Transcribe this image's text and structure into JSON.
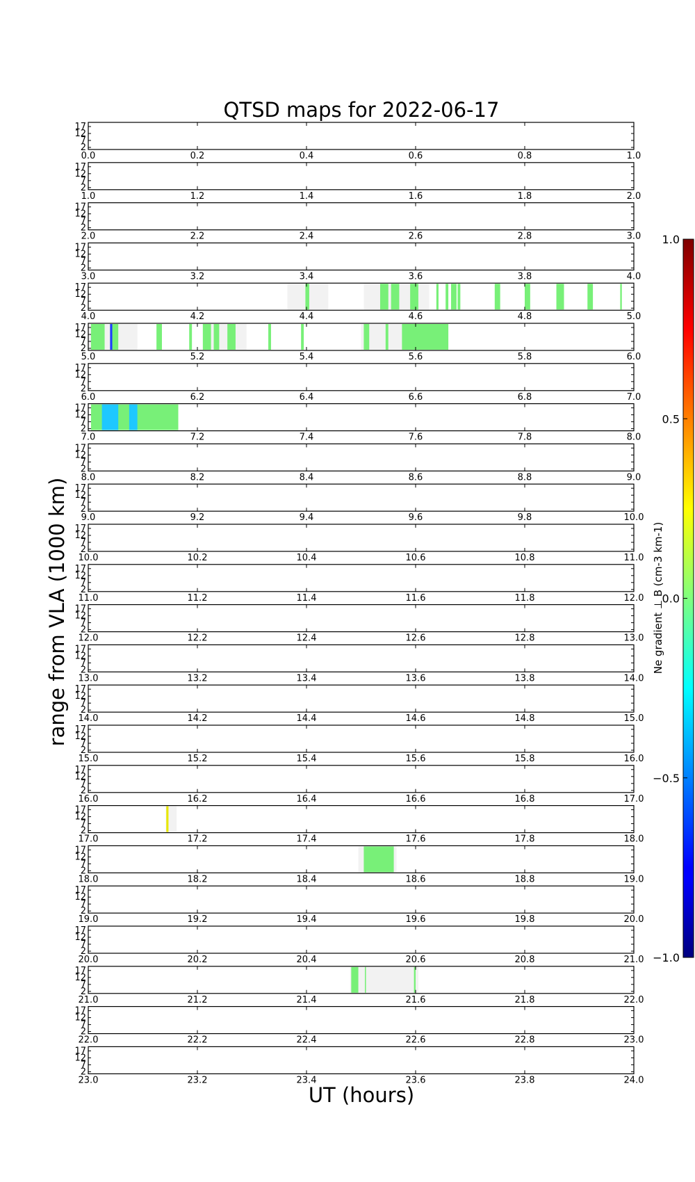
{
  "chart_data": {
    "type": "heatmap",
    "title": "QTSD maps for 2022-06-17",
    "xlabel": "UT (hours)",
    "ylabel": "range from VLA (1000 km)",
    "ytick_labels": [
      "17",
      "12",
      "7",
      "2"
    ],
    "colorbar": {
      "label": "N_e gradient ⊥ B (cm⁻³ km⁻¹)",
      "label_text": "Ne gradient ⊥ B (cm-3 km-1)",
      "range": [
        -1.0,
        1.0
      ],
      "ticks": [
        1.0,
        0.5,
        0.0,
        -0.5,
        -1.0
      ],
      "tick_labels": [
        "1.0",
        "0.5",
        "0.0",
        "−0.5",
        "−1.0"
      ],
      "colormap": "jet"
    },
    "colors": {
      "no_data": "#f2f2f2",
      "near_zero": "#78f078",
      "cyan": "#1ec8ff",
      "blue": "#1e3cff",
      "yellow": "#e8e800"
    },
    "panels": [
      {
        "start": 0,
        "end": 1,
        "ticks": [
          "0.0",
          "0.2",
          "0.4",
          "0.6",
          "0.8",
          "1.0"
        ],
        "gray": [],
        "green": [],
        "cyan": [],
        "blue": [],
        "yellow": []
      },
      {
        "start": 1,
        "end": 2,
        "ticks": [
          "1.0",
          "1.2",
          "1.4",
          "1.6",
          "1.8",
          "2.0"
        ],
        "gray": [],
        "green": [],
        "cyan": [],
        "blue": [],
        "yellow": []
      },
      {
        "start": 2,
        "end": 3,
        "ticks": [
          "2.0",
          "2.2",
          "2.4",
          "2.6",
          "2.8",
          "3.0"
        ],
        "gray": [],
        "green": [],
        "cyan": [],
        "blue": [],
        "yellow": []
      },
      {
        "start": 3,
        "end": 4,
        "ticks": [
          "3.0",
          "3.2",
          "3.4",
          "3.6",
          "3.8",
          "4.0"
        ],
        "gray": [],
        "green": [],
        "cyan": [],
        "blue": [],
        "yellow": []
      },
      {
        "start": 4,
        "end": 5,
        "ticks": [
          "4.0",
          "4.2",
          "4.4",
          "4.6",
          "4.8",
          "5.0"
        ],
        "gray": [
          [
            4.365,
            4.44
          ],
          [
            4.505,
            4.625
          ]
        ],
        "green": [
          [
            4.398,
            4.405
          ],
          [
            4.535,
            4.55
          ],
          [
            4.555,
            4.57
          ],
          [
            4.59,
            4.605
          ],
          [
            4.638,
            4.642
          ],
          [
            4.655,
            4.66
          ],
          [
            4.665,
            4.675
          ],
          [
            4.677,
            4.682
          ],
          [
            4.745,
            4.755
          ],
          [
            4.8,
            4.81
          ],
          [
            4.858,
            4.872
          ],
          [
            4.915,
            4.925
          ],
          [
            4.975,
            4.978
          ]
        ],
        "cyan": [],
        "blue": [],
        "yellow": []
      },
      {
        "start": 5,
        "end": 6,
        "ticks": [
          "5.0",
          "5.2",
          "5.4",
          "5.6",
          "5.8",
          "6.0"
        ],
        "gray": [
          [
            5.0,
            5.09
          ],
          [
            5.22,
            5.29
          ],
          [
            5.5,
            5.59
          ]
        ],
        "green": [
          [
            5.005,
            5.03
          ],
          [
            5.04,
            5.055
          ],
          [
            5.125,
            5.135
          ],
          [
            5.185,
            5.19
          ],
          [
            5.21,
            5.225
          ],
          [
            5.23,
            5.24
          ],
          [
            5.255,
            5.27
          ],
          [
            5.33,
            5.335
          ],
          [
            5.39,
            5.395
          ],
          [
            5.505,
            5.515
          ],
          [
            5.545,
            5.55
          ],
          [
            5.575,
            5.66
          ]
        ],
        "cyan": [],
        "blue": [
          [
            5.04,
            5.044
          ]
        ],
        "yellow": []
      },
      {
        "start": 6,
        "end": 7,
        "ticks": [
          "6.0",
          "6.2",
          "6.4",
          "6.6",
          "6.8",
          "7.0"
        ],
        "gray": [],
        "green": [],
        "cyan": [],
        "blue": [],
        "yellow": []
      },
      {
        "start": 7,
        "end": 8,
        "ticks": [
          "7.0",
          "7.2",
          "7.4",
          "7.6",
          "7.8",
          "8.0"
        ],
        "gray": [],
        "green": [
          [
            7.005,
            7.165
          ]
        ],
        "cyan": [
          [
            7.025,
            7.055
          ],
          [
            7.075,
            7.09
          ]
        ],
        "blue": [],
        "yellow": []
      },
      {
        "start": 8,
        "end": 9,
        "ticks": [
          "8.0",
          "8.2",
          "8.4",
          "8.6",
          "8.8",
          "9.0"
        ],
        "gray": [],
        "green": [],
        "cyan": [],
        "blue": [],
        "yellow": []
      },
      {
        "start": 9,
        "end": 10,
        "ticks": [
          "9.0",
          "9.2",
          "9.4",
          "9.6",
          "9.8",
          "10.0"
        ],
        "gray": [],
        "green": [],
        "cyan": [],
        "blue": [],
        "yellow": []
      },
      {
        "start": 10,
        "end": 11,
        "ticks": [
          "10.0",
          "10.2",
          "10.4",
          "10.6",
          "10.8",
          "11.0"
        ],
        "gray": [],
        "green": [],
        "cyan": [],
        "blue": [],
        "yellow": []
      },
      {
        "start": 11,
        "end": 12,
        "ticks": [
          "11.0",
          "11.2",
          "11.4",
          "11.6",
          "11.8",
          "12.0"
        ],
        "gray": [],
        "green": [],
        "cyan": [],
        "blue": [],
        "yellow": []
      },
      {
        "start": 12,
        "end": 13,
        "ticks": [
          "12.0",
          "12.2",
          "12.4",
          "12.6",
          "12.8",
          "13.0"
        ],
        "gray": [],
        "green": [],
        "cyan": [],
        "blue": [],
        "yellow": []
      },
      {
        "start": 13,
        "end": 14,
        "ticks": [
          "13.0",
          "13.2",
          "13.4",
          "13.6",
          "13.8",
          "14.0"
        ],
        "gray": [],
        "green": [],
        "cyan": [],
        "blue": [],
        "yellow": []
      },
      {
        "start": 14,
        "end": 15,
        "ticks": [
          "14.0",
          "14.2",
          "14.4",
          "14.6",
          "14.8",
          "15.0"
        ],
        "gray": [],
        "green": [],
        "cyan": [],
        "blue": [],
        "yellow": []
      },
      {
        "start": 15,
        "end": 16,
        "ticks": [
          "15.0",
          "15.2",
          "15.4",
          "15.6",
          "15.8",
          "16.0"
        ],
        "gray": [],
        "green": [],
        "cyan": [],
        "blue": [],
        "yellow": []
      },
      {
        "start": 16,
        "end": 17,
        "ticks": [
          "16.0",
          "16.2",
          "16.4",
          "16.6",
          "16.8",
          "17.0"
        ],
        "gray": [],
        "green": [],
        "cyan": [],
        "blue": [],
        "yellow": []
      },
      {
        "start": 17,
        "end": 18,
        "ticks": [
          "17.0",
          "17.2",
          "17.4",
          "17.6",
          "17.8",
          "18.0"
        ],
        "gray": [
          [
            17.142,
            17.162
          ]
        ],
        "green": [],
        "cyan": [],
        "blue": [],
        "yellow": [
          [
            17.143,
            17.147
          ]
        ]
      },
      {
        "start": 18,
        "end": 19,
        "ticks": [
          "18.0",
          "18.2",
          "18.4",
          "18.6",
          "18.8",
          "19.0"
        ],
        "gray": [
          [
            18.495,
            18.565
          ]
        ],
        "green": [
          [
            18.505,
            18.56
          ]
        ],
        "cyan": [],
        "blue": [],
        "yellow": []
      },
      {
        "start": 19,
        "end": 20,
        "ticks": [
          "19.0",
          "19.2",
          "19.4",
          "19.6",
          "19.8",
          "20.0"
        ],
        "gray": [],
        "green": [],
        "cyan": [],
        "blue": [],
        "yellow": []
      },
      {
        "start": 20,
        "end": 21,
        "ticks": [
          "20.0",
          "20.2",
          "20.4",
          "20.6",
          "20.8",
          "21.0"
        ],
        "gray": [],
        "green": [],
        "cyan": [],
        "blue": [],
        "yellow": []
      },
      {
        "start": 21,
        "end": 22,
        "ticks": [
          "21.0",
          "21.2",
          "21.4",
          "21.6",
          "21.8",
          "22.0"
        ],
        "gray": [
          [
            21.48,
            21.605
          ]
        ],
        "green": [
          [
            21.482,
            21.495
          ],
          [
            21.507,
            21.509
          ],
          [
            21.597,
            21.6
          ]
        ],
        "cyan": [],
        "blue": [],
        "yellow": []
      },
      {
        "start": 22,
        "end": 23,
        "ticks": [
          "22.0",
          "22.2",
          "22.4",
          "22.6",
          "22.8",
          "23.0"
        ],
        "gray": [],
        "green": [],
        "cyan": [],
        "blue": [],
        "yellow": []
      },
      {
        "start": 23,
        "end": 24,
        "ticks": [
          "23.0",
          "23.2",
          "23.4",
          "23.6",
          "23.8",
          "24.0"
        ],
        "gray": [],
        "green": [],
        "cyan": [],
        "blue": [],
        "yellow": []
      }
    ]
  }
}
